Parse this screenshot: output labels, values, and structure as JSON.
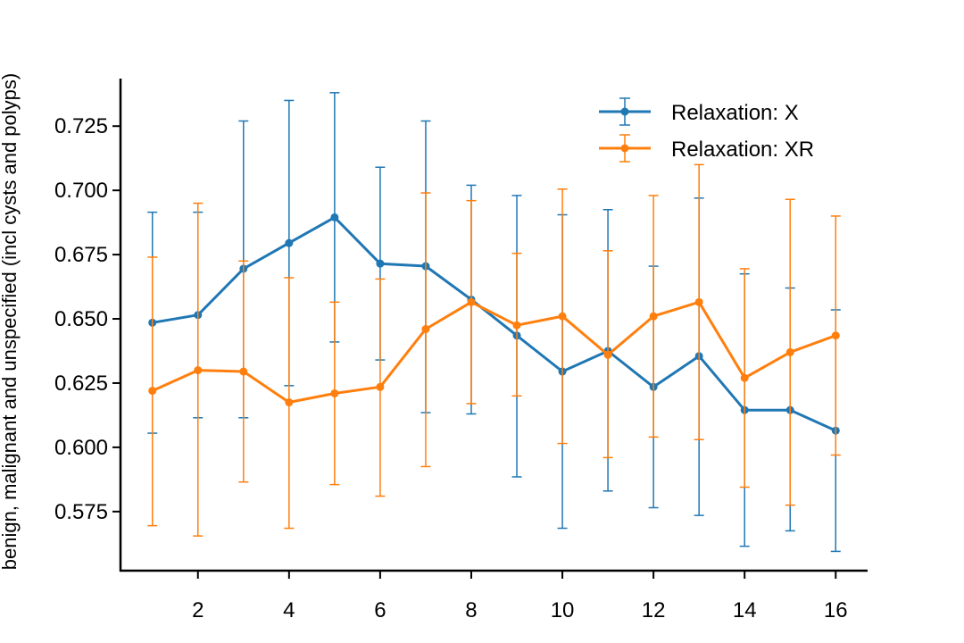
{
  "chart_data": {
    "type": "line",
    "title": "",
    "xlabel": "",
    "ylabel": "benign, malignant and unspecified (incl cysts and polyps)",
    "xlim": [
      0.3,
      16.7
    ],
    "ylim": [
      0.552,
      0.7435
    ],
    "xticks": [
      2,
      4,
      6,
      8,
      10,
      12,
      14,
      16
    ],
    "yticks": [
      0.575,
      0.6,
      0.625,
      0.65,
      0.675,
      0.7,
      0.725
    ],
    "ytick_labels": [
      "0.575",
      "0.600",
      "0.625",
      "0.650",
      "0.675",
      "0.700",
      "0.725"
    ],
    "grid": false,
    "legend": "top-right",
    "x": [
      1,
      2,
      3,
      4,
      5,
      6,
      7,
      8,
      9,
      10,
      11,
      12,
      13,
      14,
      15,
      16
    ],
    "series": [
      {
        "name": "Relaxation: X",
        "color": "#1f77b4",
        "values": [
          0.6485,
          0.6515,
          0.6695,
          0.6795,
          0.6895,
          0.6715,
          0.6705,
          0.6575,
          0.6435,
          0.6295,
          0.6375,
          0.6235,
          0.6355,
          0.6145,
          0.6145,
          0.6065
        ],
        "err_low": [
          0.6055,
          0.6115,
          0.6115,
          0.624,
          0.641,
          0.634,
          0.6135,
          0.613,
          0.5885,
          0.5685,
          0.583,
          0.5765,
          0.5735,
          0.5615,
          0.5675,
          0.5595
        ],
        "err_high": [
          0.6915,
          0.6915,
          0.727,
          0.735,
          0.738,
          0.709,
          0.727,
          0.702,
          0.698,
          0.6905,
          0.6925,
          0.6705,
          0.697,
          0.6675,
          0.662,
          0.6535
        ]
      },
      {
        "name": "Relaxation: XR",
        "color": "#ff7f0e",
        "values": [
          0.622,
          0.63,
          0.6295,
          0.6175,
          0.621,
          0.6235,
          0.646,
          0.6565,
          0.6475,
          0.651,
          0.636,
          0.651,
          0.6565,
          0.627,
          0.637,
          0.6435
        ],
        "err_low": [
          0.5695,
          0.5655,
          0.5865,
          0.5685,
          0.5855,
          0.581,
          0.5925,
          0.617,
          0.62,
          0.6015,
          0.596,
          0.604,
          0.603,
          0.5845,
          0.5775,
          0.597
        ],
        "err_high": [
          0.674,
          0.695,
          0.6725,
          0.666,
          0.6565,
          0.6655,
          0.699,
          0.696,
          0.6755,
          0.7005,
          0.6765,
          0.698,
          0.71,
          0.6695,
          0.6965,
          0.69
        ]
      }
    ]
  }
}
